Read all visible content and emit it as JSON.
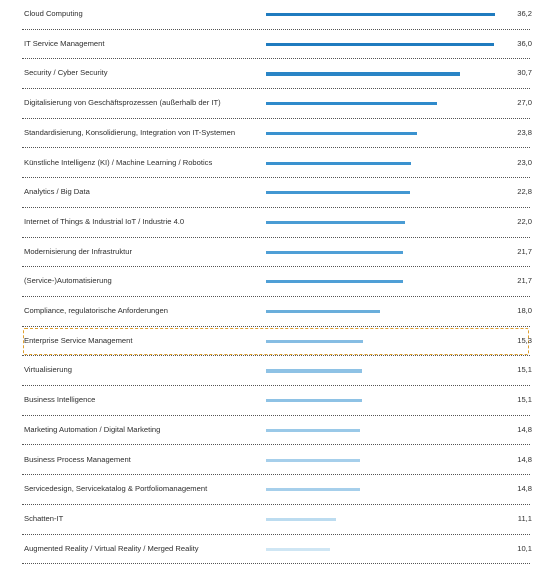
{
  "chart_data": {
    "type": "bar",
    "orientation": "horizontal",
    "title": "",
    "xlabel": "",
    "ylabel": "",
    "xlim": [
      0,
      36.2
    ],
    "grid": false,
    "highlighted_category": "Enterprise Service Management",
    "categories": [
      "Cloud Computing",
      "IT Service Management",
      "Security / Cyber Security",
      "Digitalisierung von Geschäftsprozessen (außerhalb der IT)",
      "Standardisierung, Konsolidierung, Integration von IT-Systemen",
      "Künstliche Intelligenz (KI) / Machine Learning / Robotics",
      "Analytics / Big Data",
      "Internet of Things & Industrial IoT / Industrie 4.0",
      "Modernisierung der Infrastruktur",
      "(Service-)Automatisierung",
      "Compliance, regulatorische Anforderungen",
      "Enterprise Service Management",
      "Virtualisierung",
      "Business Intelligence",
      "Marketing Automation / Digital Marketing",
      "Business Process Management",
      "Servicedesign, Servicekatalog & Portfoliomanagement",
      "Schatten-IT",
      "Augmented Reality / Virtual Reality / Merged Reality"
    ],
    "values": [
      36.2,
      36.0,
      30.7,
      27.0,
      23.8,
      23.0,
      22.8,
      22.0,
      21.7,
      21.7,
      18.0,
      15.3,
      15.1,
      15.1,
      14.8,
      14.8,
      14.8,
      11.1,
      10.1
    ],
    "value_labels": [
      "36,2",
      "36,0",
      "30,7",
      "27,0",
      "23,8",
      "23,0",
      "22,8",
      "22,0",
      "21,7",
      "21,7",
      "18,0",
      "15,3",
      "15,1",
      "15,1",
      "14,8",
      "14,8",
      "14,8",
      "11,1",
      "10,1"
    ],
    "bar_colors": [
      "#1f7bbf",
      "#1f7bbf",
      "#2a85c6",
      "#2f8acb",
      "#3a92cf",
      "#3a92cf",
      "#4297d2",
      "#4a9cd4",
      "#4f9fd6",
      "#4f9fd6",
      "#6aaedb",
      "#86bde3",
      "#8ec2e5",
      "#8ec2e5",
      "#9ac9e8",
      "#a6cfeb",
      "#a6cfeb",
      "#bcdcf0",
      "#cfe6f4"
    ]
  }
}
